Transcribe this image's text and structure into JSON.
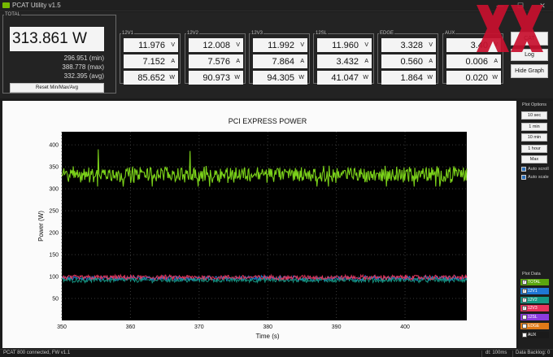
{
  "window": {
    "title": "PCAT Utility v1.5",
    "minimize": "—",
    "maximize": "☐",
    "close": "✕"
  },
  "total": {
    "legend": "TOTAL",
    "value": "313.861 W",
    "min": "296.951 (min)",
    "max": "388.778 (max)",
    "avg": "332.395 (avg)",
    "reset_label": "Reset Min/Max/Avg"
  },
  "channels": [
    {
      "name": "12V1",
      "volts": "11.976",
      "amps": "7.152",
      "watts": "85.652"
    },
    {
      "name": "12V2",
      "volts": "12.008",
      "amps": "7.576",
      "watts": "90.973"
    },
    {
      "name": "12V3",
      "volts": "11.992",
      "amps": "7.864",
      "watts": "94.305"
    },
    {
      "name": "12SL",
      "volts": "11.960",
      "amps": "3.432",
      "watts": "41.047"
    },
    {
      "name": "EDGE",
      "volts": "3.328",
      "amps": "0.560",
      "watts": "1.864"
    },
    {
      "name": "AUX",
      "volts": "3.40",
      "amps": "0.006",
      "watts": "0.020"
    }
  ],
  "units": {
    "volts": "V",
    "amps": "A",
    "watts": "W"
  },
  "actions": {
    "start_cat": "CAT",
    "log": "Log",
    "hide_graph": "Hide Graph"
  },
  "watermark": "XX",
  "chart_data": {
    "type": "line",
    "title": "PCI EXPRESS POWER",
    "xlabel": "Time (s)",
    "ylabel": "Power  (W)",
    "xlim": [
      350,
      409
    ],
    "ylim": [
      0,
      430
    ],
    "x_ticks": [
      350,
      360,
      370,
      380,
      390,
      400
    ],
    "y_ticks": [
      50,
      100,
      150,
      200,
      250,
      300,
      350,
      400
    ],
    "grid": true,
    "series": [
      {
        "name": "TOTAL",
        "color": "#7bd11a",
        "mean": 333,
        "jitter": 16
      },
      {
        "name": "12V1",
        "color": "#1f77d4",
        "mean": 96,
        "jitter": 5
      },
      {
        "name": "12V2",
        "color": "#159a86",
        "mean": 92,
        "jitter": 5
      },
      {
        "name": "12V3",
        "color": "#e8345c",
        "mean": 98,
        "jitter": 5
      }
    ]
  },
  "plot_options": {
    "title": "Plot Options",
    "ranges": [
      "10 sec",
      "1 min",
      "10 min",
      "1 hour",
      "Max"
    ],
    "auto_scroll": "Auto scroll",
    "auto_scale": "Auto scale"
  },
  "plot_data": {
    "title": "Plot Data",
    "items": [
      {
        "label": "TOTAL",
        "color": "#5aa60e",
        "checked": true
      },
      {
        "label": "12V1",
        "color": "#1f77d4",
        "checked": true
      },
      {
        "label": "12V2",
        "color": "#159a86",
        "checked": true
      },
      {
        "label": "12V3",
        "color": "#e8345c",
        "checked": true
      },
      {
        "label": "12SL",
        "color": "#8c3ce0",
        "checked": false
      },
      {
        "label": "EDGE",
        "color": "#e07a18",
        "checked": false
      },
      {
        "label": "AUX",
        "color": "#1a1a1a",
        "checked": false
      }
    ]
  },
  "status": {
    "connection": "PCAT 800 connected, FW v1.1",
    "dt": "dt: 100ms",
    "backlog": "Data Backlog: 0"
  }
}
